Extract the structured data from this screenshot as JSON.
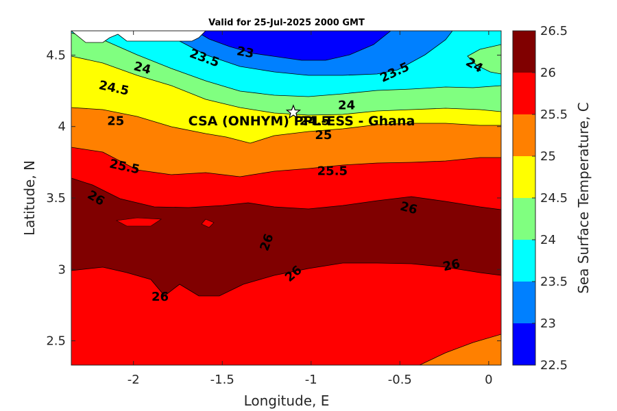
{
  "chart_data": {
    "type": "filled-contour",
    "title": "Valid for 25-Jul-2025 2000 GMT",
    "xlabel": "Longitude, E",
    "ylabel": "Latitude, N",
    "xlim": [
      -2.35,
      0.07
    ],
    "ylim": [
      2.33,
      4.67
    ],
    "x_ticks": [
      -2,
      -1.5,
      -1,
      -0.5,
      0
    ],
    "x_tick_labels": [
      "-2",
      "-1.5",
      "-1",
      "-0.5",
      "0"
    ],
    "y_ticks": [
      2.5,
      3,
      3.5,
      4,
      4.5
    ],
    "y_tick_labels": [
      "2.5",
      "3",
      "3.5",
      "4",
      "4.5"
    ],
    "colorbar": {
      "label": "Sea Surface Temperature, C",
      "levels": [
        22.5,
        23,
        23.5,
        24,
        24.5,
        25,
        25.5,
        26,
        26.5
      ],
      "level_labels": [
        "22.5",
        "23",
        "23.5",
        "24",
        "24.5",
        "25",
        "25.5",
        "26",
        "26.5"
      ],
      "colors": [
        "#0000ff",
        "#0080ff",
        "#00ffff",
        "#80ff80",
        "#ffff00",
        "#ff8000",
        "#ff0000",
        "#800000"
      ]
    },
    "site": {
      "label": "CSA (ONHYM) PPL-ESS  - Ghana",
      "lon": -1.1,
      "lat": 4.1,
      "marker": "star"
    },
    "contour_labels": [
      {
        "text": "23",
        "lon": -1.37,
        "lat": 4.52,
        "rotate": 10
      },
      {
        "text": "23.5",
        "lon": -1.6,
        "lat": 4.48,
        "rotate": 20
      },
      {
        "text": "23.5",
        "lon": -0.53,
        "lat": 4.38,
        "rotate": -25
      },
      {
        "text": "24",
        "lon": -1.95,
        "lat": 4.41,
        "rotate": 15
      },
      {
        "text": "24",
        "lon": -0.08,
        "lat": 4.43,
        "rotate": 30
      },
      {
        "text": "24",
        "lon": -0.8,
        "lat": 4.15,
        "rotate": 0
      },
      {
        "text": "24.5",
        "lon": -2.11,
        "lat": 4.27,
        "rotate": 12
      },
      {
        "text": "24.5",
        "lon": -0.98,
        "lat": 4.04,
        "rotate": 0
      },
      {
        "text": "25",
        "lon": -2.1,
        "lat": 4.04,
        "rotate": 0
      },
      {
        "text": "25",
        "lon": -0.93,
        "lat": 3.94,
        "rotate": 0
      },
      {
        "text": "25.5",
        "lon": -2.05,
        "lat": 3.72,
        "rotate": 12
      },
      {
        "text": "25.5",
        "lon": -0.88,
        "lat": 3.69,
        "rotate": 0
      },
      {
        "text": "26",
        "lon": -2.21,
        "lat": 3.5,
        "rotate": 30
      },
      {
        "text": "26",
        "lon": -0.45,
        "lat": 3.43,
        "rotate": 15
      },
      {
        "text": "26",
        "lon": -1.25,
        "lat": 3.19,
        "rotate": -70
      },
      {
        "text": "26",
        "lon": -1.1,
        "lat": 2.97,
        "rotate": -40
      },
      {
        "text": "26",
        "lon": -0.21,
        "lat": 3.03,
        "rotate": -12
      },
      {
        "text": "26",
        "lon": -1.85,
        "lat": 2.81,
        "rotate": 0
      }
    ]
  }
}
